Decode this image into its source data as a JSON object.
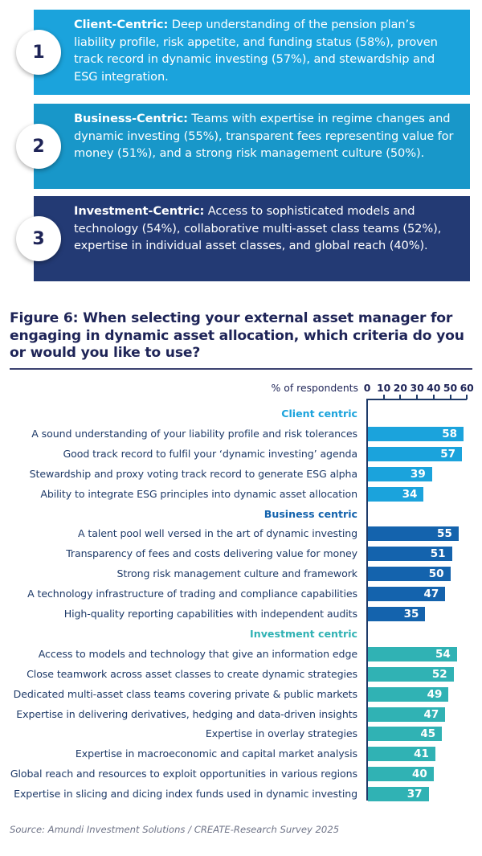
{
  "callouts": [
    {
      "number": "1",
      "heading": "Client-Centric:",
      "text": " Deep understanding of the pension plan’s liability profile, risk appetite, and funding status (58%), proven track record in dynamic investing (57%), and stewardship and ESG integration.",
      "color": "#1ba3dc"
    },
    {
      "number": "2",
      "heading": "Business-Centric:",
      "text": " Teams with expertise in regime changes and dynamic investing (55%), transparent fees representing value for money (51%), and a strong risk management culture (50%).",
      "color": "#1897c9"
    },
    {
      "number": "3",
      "heading": "Investment-Centric:",
      "text": " Access to sophisticated models and technology (54%), collaborative multi-asset class teams (52%), expertise in individual asset classes, and global reach (40%).",
      "color": "#233a74"
    }
  ],
  "figure": {
    "title": "Figure 6: When selecting your external asset manager for engaging in dynamic asset allocation, which criteria do you or would you like to use?",
    "source": "Source: Amundi Investment Solutions / CREATE-Research Survey 2025"
  },
  "chart_data": {
    "type": "bar",
    "orientation": "horizontal",
    "title": "Figure 6: When selecting your external asset manager for engaging in dynamic asset allocation, which criteria do you or would you like to use?",
    "xlabel": "% of respondents",
    "ylabel": "",
    "xlim": [
      0,
      60
    ],
    "x_ticks": [
      "0",
      "10",
      "20",
      "30",
      "40",
      "50",
      "60"
    ],
    "grid": false,
    "legend": null,
    "groups": [
      {
        "name": "Client centric",
        "color": "#1ba3dc",
        "label_color": "#1ba3dc",
        "categories": [
          "A sound understanding of your liability profile and risk tolerances",
          "Good track record to fulfil your ‘dynamic investing’ agenda",
          "Stewardship and proxy voting track record to generate ESG alpha",
          "Ability to integrate ESG principles into dynamic asset allocation"
        ],
        "values": [
          58,
          57,
          39,
          34
        ]
      },
      {
        "name": "Business centric",
        "color": "#1463ad",
        "label_color": "#1463ad",
        "categories": [
          "A talent pool well versed in the art of dynamic investing",
          "Transparency of fees and costs delivering value for money",
          "Strong risk management culture and framework",
          "A technology infrastructure of trading and compliance capabilities",
          "High-quality reporting capabilities with independent audits"
        ],
        "values": [
          55,
          51,
          50,
          47,
          35
        ]
      },
      {
        "name": "Investment centric",
        "color": "#30b2b4",
        "label_color": "#30b2b4",
        "categories": [
          "Access to models and technology that give an information edge",
          "Close teamwork across asset classes to create dynamic strategies",
          "Dedicated multi-asset class teams covering private & public markets",
          "Expertise in delivering derivatives, hedging and data-driven insights",
          "Expertise in overlay strategies",
          "Expertise in macroeconomic and capital market analysis",
          "Global reach and resources to exploit opportunities in various regions",
          "Expertise in slicing and dicing index funds used in dynamic investing"
        ],
        "values": [
          54,
          52,
          49,
          47,
          45,
          41,
          40,
          37
        ]
      }
    ]
  }
}
